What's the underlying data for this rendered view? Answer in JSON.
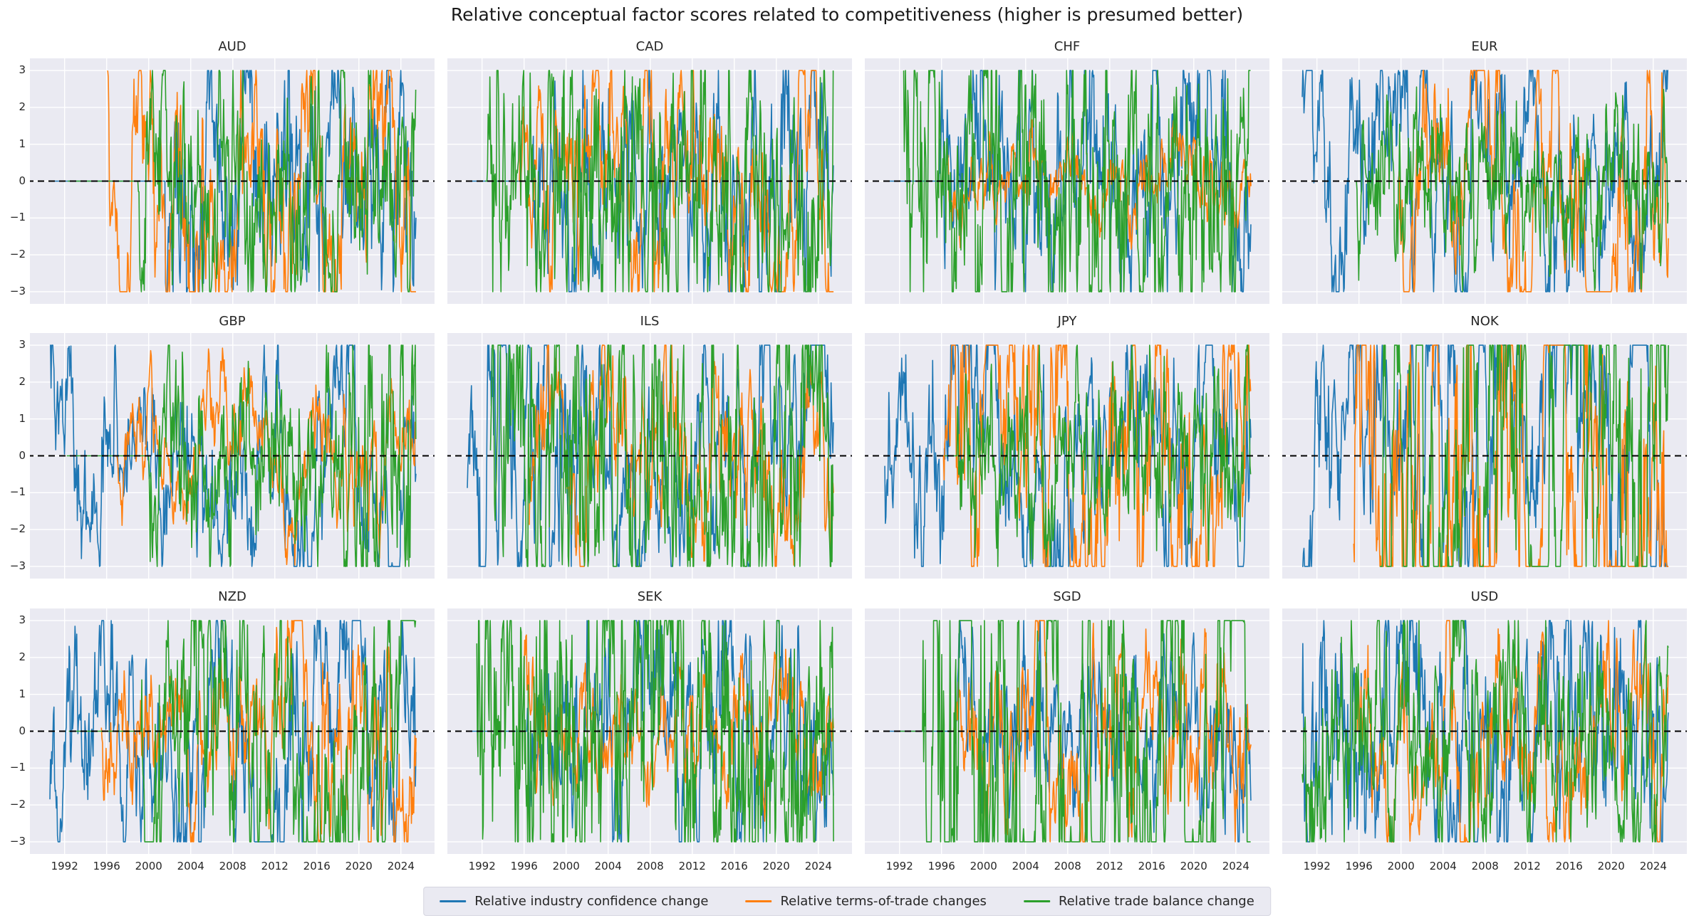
{
  "figure": {
    "background": "#ffffff",
    "panel_background": "#eaeaf2",
    "grid_color": "#ffffff",
    "text_color": "#262626"
  },
  "legend": {
    "items": [
      {
        "label": "Relative industry confidence change",
        "color": "#1f77b4"
      },
      {
        "label": "Relative terms-of-trade changes",
        "color": "#ff7f0e"
      },
      {
        "label": "Relative trade balance change",
        "color": "#2ca02c"
      }
    ]
  },
  "chart_data": {
    "type": "line",
    "title": "Relative conceptual factor scores related to competitiveness (higher is presumed better)",
    "grid": true,
    "legend_position": "bottom-center",
    "zero_line": {
      "value": 0,
      "style": "dashed",
      "color": "#000000"
    },
    "ylim": [
      -3.33,
      3.33
    ],
    "yticks": [
      3,
      2,
      1,
      0,
      -1,
      -2,
      -3
    ],
    "ytick_labels": [
      "3",
      "2",
      "1",
      "0",
      "−1",
      "−2",
      "−3"
    ],
    "xlim": [
      1988.7,
      2027.2
    ],
    "xticks": [
      1992,
      1996,
      2000,
      2004,
      2008,
      2012,
      2016,
      2020,
      2024
    ],
    "data_span": [
      1990.55,
      2025.45
    ],
    "clip_range": [
      -3,
      3
    ],
    "series_names": [
      "Relative industry confidence change",
      "Relative terms-of-trade changes",
      "Relative trade balance change"
    ],
    "series_colors": [
      "#1f77b4",
      "#ff7f0e",
      "#2ca02c"
    ],
    "values_note": "dense monthly stochastic series clipped at ±3; approximated by per-series AR(1) parameters read from the pixel traces",
    "panels": [
      {
        "title": "AUD",
        "series": [
          {
            "start": 1990.6,
            "active": 2001.6,
            "scale": 1.8,
            "smooth": 0.82,
            "seed": 11
          },
          {
            "start": 1996.1,
            "active": 1996.1,
            "scale": 2.3,
            "smooth": 0.93,
            "seed": 12
          },
          {
            "start": 1992.3,
            "active": 1999.0,
            "scale": 1.6,
            "smooth": 0.78,
            "seed": 13
          }
        ]
      },
      {
        "title": "CAD",
        "series": [
          {
            "start": 1990.6,
            "active": 1996.8,
            "scale": 1.7,
            "smooth": 0.82,
            "seed": 21
          },
          {
            "start": 1995.5,
            "active": 1995.6,
            "scale": 1.7,
            "smooth": 0.9,
            "seed": 22
          },
          {
            "start": 1992.3,
            "active": 1992.5,
            "scale": 1.9,
            "smooth": 0.72,
            "seed": 23
          }
        ]
      },
      {
        "title": "CHF",
        "series": [
          {
            "start": 1990.6,
            "active": 1995.8,
            "scale": 1.7,
            "smooth": 0.82,
            "seed": 31
          },
          {
            "start": 1996.5,
            "active": 1996.5,
            "scale": 0.7,
            "smooth": 0.9,
            "seed": 32
          },
          {
            "start": 1992.4,
            "active": 1992.4,
            "scale": 2.1,
            "smooth": 0.7,
            "seed": 33
          }
        ]
      },
      {
        "title": "EUR",
        "series": [
          {
            "start": 1990.6,
            "active": 1990.6,
            "scale": 2.2,
            "smooth": 0.93,
            "seed": 41
          },
          {
            "start": 1999.6,
            "active": 1999.8,
            "scale": 2.2,
            "smooth": 0.93,
            "seed": 42
          },
          {
            "start": 1995.7,
            "active": 1995.8,
            "scale": 1.15,
            "smooth": 0.74,
            "seed": 43
          }
        ]
      },
      {
        "title": "GBP",
        "series": [
          {
            "start": 1990.6,
            "active": 1990.6,
            "scale": 1.4,
            "smooth": 0.88,
            "seed": 51
          },
          {
            "start": 1996.8,
            "active": 1997.0,
            "scale": 0.95,
            "smooth": 0.9,
            "seed": 52
          },
          {
            "start": 1992.2,
            "active": 2000.0,
            "scale": 1.15,
            "smooth": 0.72,
            "seed": 53,
            "shift_year": 2018.5,
            "scale2": 2.7
          }
        ]
      },
      {
        "title": "ILS",
        "series": [
          {
            "start": 1990.6,
            "active": 1990.6,
            "scale": 2.7,
            "smooth": 0.88,
            "seed": 61,
            "shift_year": 2000.5,
            "scale2": 1.6
          },
          {
            "start": 1996.5,
            "active": 1996.5,
            "scale": 1.4,
            "smooth": 0.9,
            "seed": 62
          },
          {
            "start": 1992.8,
            "active": 1992.8,
            "scale": 2.0,
            "smooth": 0.72,
            "seed": 63
          }
        ]
      },
      {
        "title": "JPY",
        "series": [
          {
            "start": 1990.6,
            "active": 1990.6,
            "scale": 1.9,
            "smooth": 0.9,
            "seed": 71
          },
          {
            "start": 1995.8,
            "active": 1996.2,
            "scale": 3.2,
            "smooth": 0.93,
            "seed": 72
          },
          {
            "start": 1996.3,
            "active": 1997.5,
            "scale": 1.25,
            "smooth": 0.72,
            "seed": 73
          }
        ]
      },
      {
        "title": "NOK",
        "series": [
          {
            "start": 1990.6,
            "active": 1990.6,
            "scale": 2.6,
            "smooth": 0.92,
            "seed": 81
          },
          {
            "start": 1995.5,
            "active": 1995.5,
            "scale": 3.8,
            "smooth": 0.9,
            "seed": 82
          },
          {
            "start": 1998.0,
            "active": 1998.0,
            "scale": 3.8,
            "smooth": 0.88,
            "seed": 83
          }
        ]
      },
      {
        "title": "NZD",
        "series": [
          {
            "start": 1990.6,
            "active": 1990.6,
            "scale": 2.1,
            "smooth": 0.92,
            "seed": 91
          },
          {
            "start": 1995.5,
            "active": 1995.5,
            "scale": 1.2,
            "smooth": 0.9,
            "seed": 92,
            "shift_year": 2012.0,
            "scale2": 1.8
          },
          {
            "start": 1992.4,
            "active": 1999.3,
            "scale": 2.4,
            "smooth": 0.85,
            "seed": 93
          }
        ]
      },
      {
        "title": "SEK",
        "series": [
          {
            "start": 1990.6,
            "active": 1996.3,
            "scale": 1.6,
            "smooth": 0.85,
            "seed": 101
          },
          {
            "start": 1996.0,
            "active": 1996.0,
            "scale": 0.95,
            "smooth": 0.88,
            "seed": 102
          },
          {
            "start": 1991.5,
            "active": 1991.5,
            "scale": 2.3,
            "smooth": 0.62,
            "seed": 103
          }
        ]
      },
      {
        "title": "SGD",
        "series": [
          {
            "start": 1990.6,
            "active": 1997.3,
            "scale": 1.35,
            "smooth": 0.85,
            "seed": 111
          },
          {
            "start": 1997.0,
            "active": 1997.2,
            "scale": 1.35,
            "smooth": 0.88,
            "seed": 112
          },
          {
            "start": 1991.8,
            "active": 1994.2,
            "scale": 6.0,
            "smooth": 0.9,
            "seed": 113
          }
        ]
      },
      {
        "title": "USD",
        "series": [
          {
            "start": 1990.6,
            "active": 1990.6,
            "scale": 1.75,
            "smooth": 0.8,
            "seed": 121
          },
          {
            "start": 1995.8,
            "active": 1995.9,
            "scale": 1.45,
            "smooth": 0.9,
            "seed": 122
          },
          {
            "start": 1990.6,
            "active": 1990.6,
            "scale": 1.55,
            "smooth": 0.74,
            "seed": 123
          }
        ]
      }
    ]
  }
}
